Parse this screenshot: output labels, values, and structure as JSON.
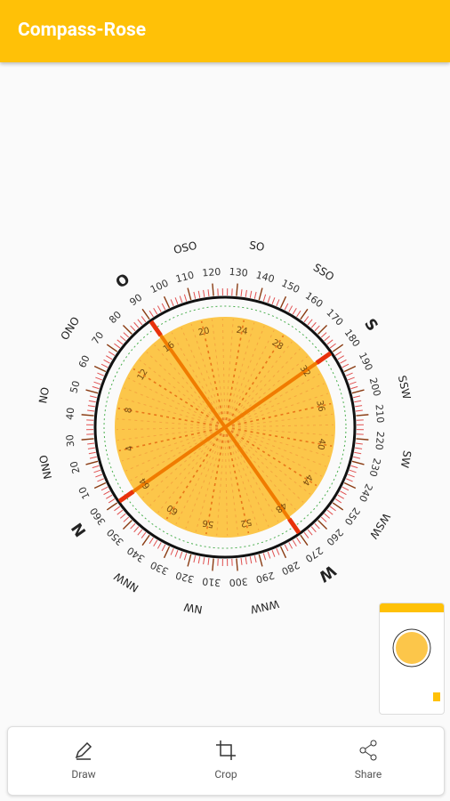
{
  "app_bar": {
    "title": "Compass-Rose"
  },
  "compass": {
    "directions": [
      "N",
      "NNO",
      "NO",
      "ONO",
      "O",
      "OSO",
      "SO",
      "SSO",
      "S",
      "SSW",
      "SW",
      "WSW",
      "W",
      "WNW",
      "NW",
      "NNW"
    ],
    "degree_labels": [
      "10",
      "20",
      "30",
      "40",
      "50",
      "60",
      "70",
      "80",
      "90",
      "100",
      "110",
      "120",
      "130",
      "140",
      "150",
      "160",
      "170",
      "180",
      "190",
      "200",
      "210",
      "220",
      "230",
      "240",
      "250",
      "260",
      "270",
      "280",
      "290",
      "300",
      "310",
      "320",
      "330",
      "340",
      "350",
      "360"
    ],
    "inner_labels": [
      "4",
      "8",
      "12",
      "16",
      "20",
      "24",
      "28",
      "32",
      "36",
      "40",
      "44",
      "48",
      "52",
      "56",
      "60",
      "64"
    ]
  },
  "toolbar": {
    "items": [
      {
        "label": "Draw"
      },
      {
        "label": "Crop"
      },
      {
        "label": "Share"
      }
    ]
  }
}
